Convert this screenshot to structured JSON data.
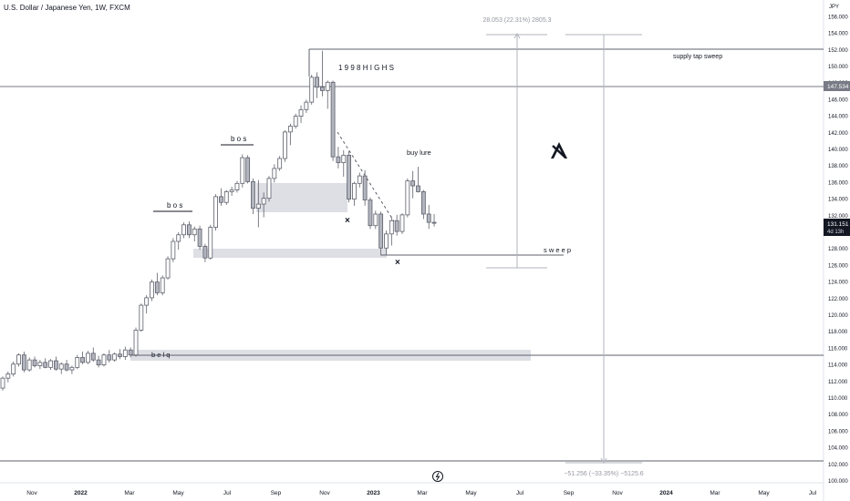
{
  "header": {
    "title": "U.S. Dollar / Japanese Yen, 1W, FXCM"
  },
  "currency_label": "JPY",
  "price_tags": {
    "line": "147.534",
    "last": "131.151",
    "countdown": "4d 13h"
  },
  "measure_up": "28.053 (22.31%) 2805.3",
  "measure_down": "−51.256 (−33.35%) −5125.6",
  "annotations": {
    "highs": "1 9 9 8  H I G H S",
    "supply": "supply tap sweep",
    "bos_1": "b o s",
    "bos_2": "b o s",
    "buy_lure": "buy lure",
    "sweep": "s w e e p",
    "belq": "b e l q",
    "x_mark": "×"
  },
  "colors": {
    "bull_fill": "#ffffff",
    "bear_fill": "#b2b5be",
    "candle_edge": "#5d606b",
    "zone": "#d1d4dc",
    "line": "#5d606b"
  },
  "chart_data": {
    "type": "candlestick",
    "title": "U.S. Dollar / Japanese Yen, 1W, FXCM",
    "y_axis": {
      "ticks": [
        156,
        154,
        152,
        150,
        148,
        146,
        144,
        142,
        140,
        138,
        136,
        134,
        132,
        130,
        128,
        126,
        124,
        122,
        120,
        118,
        116,
        114,
        112,
        110,
        108,
        106,
        104,
        102,
        100
      ],
      "decimals": 3
    },
    "x_axis": {
      "ticks": [
        {
          "label": "Nov",
          "bold": false
        },
        {
          "label": "2022",
          "bold": true
        },
        {
          "label": "Mar",
          "bold": false
        },
        {
          "label": "May",
          "bold": false
        },
        {
          "label": "Jul",
          "bold": false
        },
        {
          "label": "Sep",
          "bold": false
        },
        {
          "label": "Nov",
          "bold": false
        },
        {
          "label": "2023",
          "bold": true
        },
        {
          "label": "Mar",
          "bold": false
        },
        {
          "label": "May",
          "bold": false
        },
        {
          "label": "Jul",
          "bold": false
        },
        {
          "label": "Sep",
          "bold": false
        },
        {
          "label": "Nov",
          "bold": false
        },
        {
          "label": "2024",
          "bold": true
        },
        {
          "label": "Mar",
          "bold": false
        },
        {
          "label": "May",
          "bold": false
        },
        {
          "label": "Jul",
          "bold": false
        }
      ]
    },
    "candles": [
      [
        111.2,
        112.6,
        110.9,
        112.4
      ],
      [
        112.4,
        113.2,
        111.9,
        112.9
      ],
      [
        112.9,
        114.4,
        112.6,
        114.1
      ],
      [
        114.1,
        115.4,
        113.8,
        115.2
      ],
      [
        115.2,
        115.6,
        113.1,
        113.4
      ],
      [
        113.4,
        114.9,
        113.2,
        114.6
      ],
      [
        114.6,
        115.0,
        113.7,
        113.9
      ],
      [
        113.9,
        114.6,
        113.5,
        114.3
      ],
      [
        114.3,
        114.8,
        113.6,
        113.7
      ],
      [
        113.7,
        114.7,
        113.4,
        114.5
      ],
      [
        114.5,
        115.0,
        113.3,
        113.5
      ],
      [
        113.5,
        114.3,
        112.9,
        114.1
      ],
      [
        114.1,
        114.6,
        113.2,
        113.4
      ],
      [
        113.4,
        113.9,
        112.9,
        113.7
      ],
      [
        113.7,
        115.2,
        113.5,
        114.9
      ],
      [
        114.9,
        115.6,
        114.1,
        114.3
      ],
      [
        114.3,
        115.7,
        114.1,
        115.4
      ],
      [
        115.4,
        116.1,
        114.4,
        114.6
      ],
      [
        114.6,
        115.1,
        113.7,
        114.0
      ],
      [
        114.0,
        115.4,
        113.8,
        115.2
      ],
      [
        115.2,
        115.8,
        114.3,
        114.6
      ],
      [
        114.6,
        115.5,
        114.4,
        115.3
      ],
      [
        115.3,
        115.9,
        114.7,
        115.0
      ],
      [
        115.0,
        116.2,
        114.6,
        115.8
      ],
      [
        115.8,
        116.1,
        114.9,
        115.2
      ],
      [
        115.2,
        118.5,
        115.0,
        118.2
      ],
      [
        118.2,
        121.4,
        118.0,
        121.2
      ],
      [
        121.2,
        122.4,
        120.2,
        122.1
      ],
      [
        122.1,
        124.3,
        121.7,
        124.0
      ],
      [
        124.0,
        125.1,
        122.4,
        122.7
      ],
      [
        122.7,
        124.8,
        122.4,
        124.5
      ],
      [
        124.5,
        127.1,
        124.3,
        126.8
      ],
      [
        126.8,
        129.3,
        126.4,
        128.9
      ],
      [
        128.9,
        130.0,
        127.9,
        129.7
      ],
      [
        129.7,
        131.2,
        129.3,
        130.9
      ],
      [
        130.9,
        131.3,
        129.3,
        129.7
      ],
      [
        129.7,
        130.7,
        128.9,
        130.4
      ],
      [
        130.4,
        130.8,
        127.9,
        128.3
      ],
      [
        128.3,
        128.6,
        126.4,
        126.9
      ],
      [
        126.9,
        130.9,
        126.7,
        130.6
      ],
      [
        130.6,
        134.6,
        130.2,
        134.3
      ],
      [
        134.3,
        135.3,
        133.2,
        133.6
      ],
      [
        133.6,
        135.1,
        133.3,
        134.9
      ],
      [
        134.9,
        135.5,
        134.4,
        135.1
      ],
      [
        135.1,
        136.2,
        134.8,
        135.9
      ],
      [
        135.9,
        139.4,
        135.4,
        139.0
      ],
      [
        139.0,
        139.3,
        135.9,
        136.1
      ],
      [
        136.1,
        136.5,
        132.2,
        132.9
      ],
      [
        132.9,
        136.3,
        130.6,
        133.4
      ],
      [
        133.4,
        134.8,
        131.8,
        134.1
      ],
      [
        134.1,
        136.8,
        133.7,
        136.5
      ],
      [
        136.5,
        138.2,
        136.0,
        137.7
      ],
      [
        137.7,
        139.2,
        137.4,
        138.9
      ],
      [
        138.9,
        142.3,
        138.5,
        142.1
      ],
      [
        142.1,
        143.1,
        140.5,
        142.8
      ],
      [
        142.8,
        144.3,
        142.5,
        144.0
      ],
      [
        144.0,
        145.3,
        143.2,
        144.8
      ],
      [
        144.8,
        146.0,
        144.4,
        145.7
      ],
      [
        145.7,
        149.0,
        145.4,
        148.7
      ],
      [
        148.7,
        149.3,
        146.2,
        147.5
      ],
      [
        147.5,
        151.9,
        146.4,
        147.1
      ],
      [
        147.1,
        148.3,
        144.9,
        148.1
      ],
      [
        148.1,
        148.3,
        138.6,
        139.1
      ],
      [
        139.1,
        140.3,
        137.7,
        138.4
      ],
      [
        138.4,
        139.9,
        136.7,
        139.3
      ],
      [
        139.3,
        139.8,
        133.6,
        134.0
      ],
      [
        134.0,
        136.1,
        133.2,
        135.9
      ],
      [
        135.9,
        137.2,
        135.4,
        136.8
      ],
      [
        136.8,
        137.5,
        133.2,
        133.9
      ],
      [
        133.9,
        134.2,
        130.4,
        130.8
      ],
      [
        130.8,
        132.6,
        130.4,
        132.2
      ],
      [
        132.2,
        132.5,
        127.2,
        128.1
      ],
      [
        128.1,
        130.2,
        127.3,
        129.8
      ],
      [
        129.8,
        131.9,
        128.4,
        131.4
      ],
      [
        131.4,
        132.1,
        129.6,
        130.1
      ],
      [
        130.1,
        132.3,
        129.8,
        132.1
      ],
      [
        132.1,
        136.5,
        131.8,
        136.2
      ],
      [
        136.2,
        137.4,
        134.1,
        135.6
      ],
      [
        135.6,
        137.9,
        134.8,
        134.9
      ],
      [
        134.9,
        135.1,
        131.6,
        132.2
      ],
      [
        132.2,
        133.3,
        130.4,
        131.2
      ],
      [
        131.2,
        132.2,
        130.7,
        131.151
      ]
    ]
  }
}
